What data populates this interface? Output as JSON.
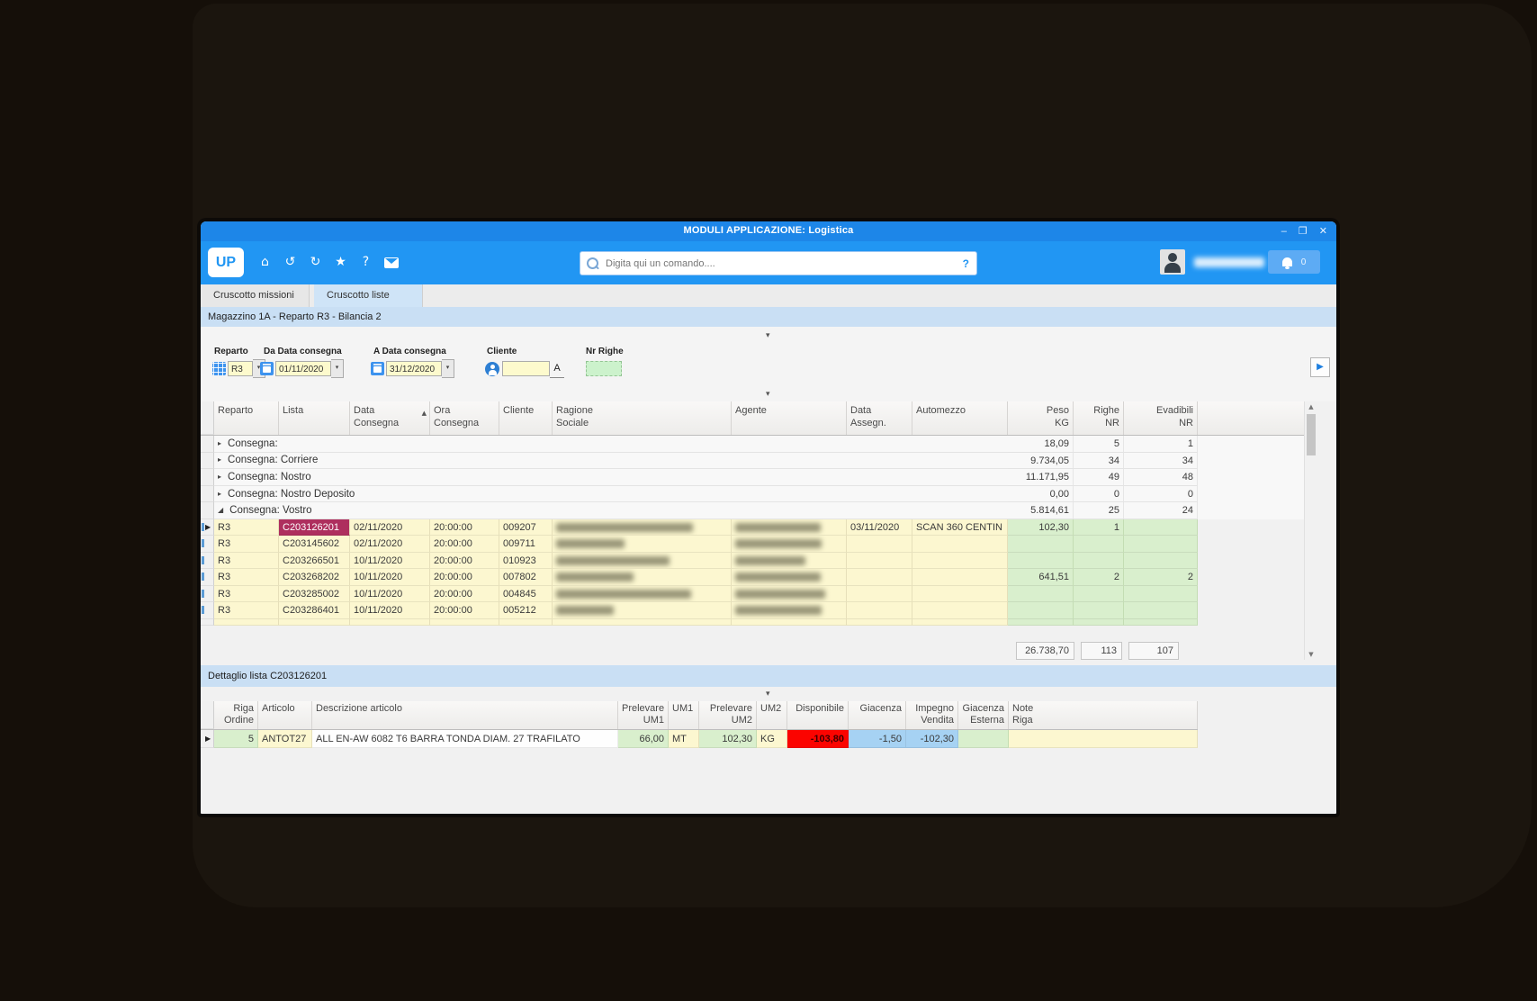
{
  "window": {
    "title": "MODULI APPLICAZIONE: Logistica",
    "minimize": "–",
    "maximize": "❐",
    "close": "✕"
  },
  "toolbar": {
    "logo_text": "UP",
    "icons": [
      {
        "name": "home-icon",
        "glyph": "⌂"
      },
      {
        "name": "undo-icon",
        "glyph": "↺"
      },
      {
        "name": "refresh-icon",
        "glyph": "↻"
      },
      {
        "name": "favorite-icon",
        "glyph": "★"
      },
      {
        "name": "help-icon",
        "glyph": "?"
      },
      {
        "name": "mail-icon",
        "glyph": ""
      }
    ],
    "search_placeholder": "Digita qui un comando....",
    "search_help": "?",
    "user_name_redacted": true,
    "notification_count": "0"
  },
  "tabs": [
    {
      "label": "Cruscotto missioni",
      "active": false
    },
    {
      "label": "Cruscotto liste",
      "active": true
    }
  ],
  "info_bar": "Magazzino 1A - Reparto R3 - Bilancia 2",
  "filters": {
    "reparto_label": "Reparto",
    "reparto_value": "R3",
    "da_data_label": "Da Data consegna",
    "da_data_value": "01/11/2020",
    "a_data_label": "A Data consegna",
    "a_data_value": "31/12/2020",
    "cliente_label": "Cliente",
    "cliente_value": "",
    "cliente_lookup": "A",
    "nr_righe_label": "Nr Righe",
    "nr_righe_value": ""
  },
  "main_table": {
    "headers": [
      [
        "Reparto",
        ""
      ],
      [
        "Lista",
        ""
      ],
      [
        "Data",
        "Consegna"
      ],
      [
        "Ora",
        "Consegna"
      ],
      [
        "Cliente",
        ""
      ],
      [
        "Ragione",
        "Sociale"
      ],
      [
        "Agente",
        ""
      ],
      [
        "Data",
        "Assegn."
      ],
      [
        "Automezzo",
        ""
      ],
      [
        "Peso",
        "KG"
      ],
      [
        "Righe",
        "NR"
      ],
      [
        "Evadibili",
        "NR"
      ]
    ],
    "sort_column": "Data Consegna",
    "groups": [
      {
        "label": "Consegna:",
        "peso": "18,09",
        "righe": "5",
        "evadibili": "1",
        "expanded": false
      },
      {
        "label": "Consegna: Corriere",
        "peso": "9.734,05",
        "righe": "34",
        "evadibili": "34",
        "expanded": false
      },
      {
        "label": "Consegna: Nostro",
        "peso": "11.171,95",
        "righe": "49",
        "evadibili": "48",
        "expanded": false
      },
      {
        "label": "Consegna: Nostro Deposito",
        "peso": "0,00",
        "righe": "0",
        "evadibili": "0",
        "expanded": false
      },
      {
        "label": "Consegna: Vostro",
        "peso": "5.814,61",
        "righe": "25",
        "evadibili": "24",
        "expanded": true
      }
    ],
    "rows": [
      {
        "reparto": "R3",
        "lista": "C203126201",
        "selected": true,
        "data_consegna": "02/11/2020",
        "ora_consegna": "20:00:00",
        "cliente": "009207",
        "ragione_redacted": true,
        "ragione_blur": 152,
        "agente_redacted": true,
        "agente_blur": 95,
        "data_assegn": "03/11/2020",
        "automezzo": "SCAN 360 CENTIN",
        "peso": "102,30",
        "righe": "1",
        "evadibili": ""
      },
      {
        "reparto": "R3",
        "lista": "C203145602",
        "selected": false,
        "data_consegna": "02/11/2020",
        "ora_consegna": "20:00:00",
        "cliente": "009711",
        "ragione_redacted": true,
        "ragione_blur": 76,
        "agente_redacted": true,
        "agente_blur": 96,
        "data_assegn": "",
        "automezzo": "",
        "peso": "",
        "righe": "",
        "evadibili": ""
      },
      {
        "reparto": "R3",
        "lista": "C203266501",
        "selected": false,
        "data_consegna": "10/11/2020",
        "ora_consegna": "20:00:00",
        "cliente": "010923",
        "ragione_redacted": true,
        "ragione_blur": 126,
        "agente_redacted": true,
        "agente_blur": 78,
        "data_assegn": "",
        "automezzo": "",
        "peso": "",
        "righe": "",
        "evadibili": ""
      },
      {
        "reparto": "R3",
        "lista": "C203268202",
        "selected": false,
        "data_consegna": "10/11/2020",
        "ora_consegna": "20:00:00",
        "cliente": "007802",
        "ragione_redacted": true,
        "ragione_blur": 86,
        "agente_redacted": true,
        "agente_blur": 95,
        "data_assegn": "",
        "automezzo": "",
        "peso": "641,51",
        "righe": "2",
        "evadibili": "2"
      },
      {
        "reparto": "R3",
        "lista": "C203285002",
        "selected": false,
        "data_consegna": "10/11/2020",
        "ora_consegna": "20:00:00",
        "cliente": "004845",
        "ragione_redacted": true,
        "ragione_blur": 150,
        "agente_redacted": true,
        "agente_blur": 100,
        "data_assegn": "",
        "automezzo": "",
        "peso": "",
        "righe": "",
        "evadibili": ""
      },
      {
        "reparto": "R3",
        "lista": "C203286401",
        "selected": false,
        "data_consegna": "10/11/2020",
        "ora_consegna": "20:00:00",
        "cliente": "005212",
        "ragione_redacted": true,
        "ragione_blur": 64,
        "agente_redacted": true,
        "agente_blur": 96,
        "data_assegn": "",
        "automezzo": "",
        "peso": "",
        "righe": "",
        "evadibili": ""
      }
    ],
    "totals": {
      "peso": "26.738,70",
      "righe": "113",
      "evadibili": "107"
    }
  },
  "detail_panel": {
    "title": "Dettaglio lista C203126201",
    "headers": [
      [
        "Riga",
        "Ordine"
      ],
      [
        "Articolo",
        ""
      ],
      [
        "Descrizione articolo",
        ""
      ],
      [
        "Prelevare",
        "UM1"
      ],
      [
        "UM1",
        ""
      ],
      [
        "Prelevare",
        "UM2"
      ],
      [
        "UM2",
        ""
      ],
      [
        "Disponibile",
        ""
      ],
      [
        "Giacenza",
        ""
      ],
      [
        "Impegno",
        "Vendita"
      ],
      [
        "Giacenza",
        "Esterna"
      ],
      [
        "Note",
        "Riga"
      ]
    ],
    "row": {
      "riga_ordine": "5",
      "articolo": "ANTOT27",
      "descrizione": "ALL EN-AW 6082 T6 BARRA TONDA DIAM. 27 TRAFILATO",
      "prelevare_um1": "66,00",
      "um1": "MT",
      "prelevare_um2": "102,30",
      "um2": "KG",
      "disponibile": "-103,80",
      "giacenza": "-1,50",
      "impegno_vendita": "-102,30",
      "giacenza_esterna": "",
      "note_riga": ""
    }
  },
  "colors": {
    "titlebar": "#1d86e8",
    "toolbar": "#2196f3",
    "tab_active": "#cfe4f7",
    "info_bar": "#c9dff4",
    "cell_yellow": "#fcf7d0",
    "cell_green": "#d9efcd",
    "selected_lista": "#ae2f5e",
    "cell_red": "#fb0400",
    "cell_blue": "#a6d2f3"
  }
}
